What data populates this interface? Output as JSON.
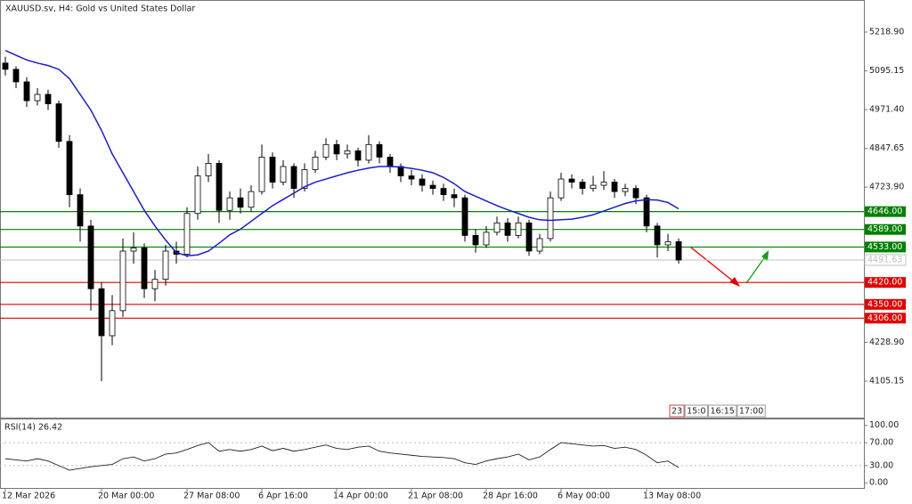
{
  "chart_data": [
    {
      "type": "candlestick",
      "title": "XAUUSD.sv, H4:  Gold vs United States Dollar",
      "categories": [
        "12 Mar 2026",
        null,
        null,
        null,
        null,
        null,
        null,
        null,
        null,
        "20 Mar 00:00",
        null,
        null,
        null,
        null,
        null,
        null,
        null,
        "27 Mar 08:00",
        null,
        null,
        null,
        null,
        null,
        null,
        "6 Apr 16:00",
        null,
        null,
        null,
        null,
        null,
        null,
        "14 Apr 00:00",
        null,
        null,
        null,
        null,
        null,
        null,
        "21 Apr 08:00",
        null,
        null,
        null,
        null,
        null,
        null,
        "28 Apr 16:00",
        null,
        null,
        null,
        null,
        null,
        null,
        "6 May 00:00",
        null,
        null,
        null,
        null,
        null,
        null,
        null,
        "13 May 08:00",
        null,
        null,
        null
      ],
      "open": [
        5120,
        5100,
        5060,
        5000,
        5020,
        4990,
        4870,
        4700,
        4600,
        4400,
        4250,
        4330,
        4520,
        4530,
        4400,
        4430,
        4520,
        4510,
        4640,
        4760,
        4800,
        4650,
        4690,
        4660,
        4710,
        4820,
        4740,
        4790,
        4720,
        4780,
        4820,
        4860,
        4830,
        4840,
        4810,
        4860,
        4820,
        4790,
        4760,
        4750,
        4730,
        4720,
        4700,
        4690,
        4570,
        4540,
        4580,
        4610,
        4570,
        4610,
        4520,
        4560,
        4690,
        4750,
        4740,
        4720,
        4730,
        4740,
        4710,
        4720,
        4690,
        4600,
        4540,
        4550
      ],
      "high": [
        5140,
        5110,
        5075,
        5040,
        5035,
        5000,
        4890,
        4720,
        4620,
        4420,
        4380,
        4560,
        4580,
        4545,
        4460,
        4540,
        4550,
        4660,
        4790,
        4830,
        4810,
        4710,
        4720,
        4730,
        4860,
        4835,
        4810,
        4800,
        4800,
        4840,
        4880,
        4875,
        4860,
        4850,
        4890,
        4870,
        4830,
        4800,
        4780,
        4765,
        4745,
        4735,
        4720,
        4700,
        4590,
        4600,
        4630,
        4625,
        4630,
        4620,
        4575,
        4710,
        4770,
        4765,
        4750,
        4760,
        4775,
        4750,
        4735,
        4730,
        4700,
        4610,
        4575,
        4560
      ],
      "low": [
        5080,
        5040,
        4980,
        4985,
        4970,
        4850,
        4660,
        4550,
        4330,
        4105,
        4220,
        4310,
        4480,
        4370,
        4360,
        4410,
        4480,
        4500,
        4620,
        4740,
        4610,
        4620,
        4640,
        4645,
        4700,
        4720,
        4730,
        4690,
        4710,
        4770,
        4810,
        4810,
        4815,
        4790,
        4800,
        4800,
        4770,
        4740,
        4730,
        4710,
        4700,
        4680,
        4660,
        4550,
        4515,
        4530,
        4570,
        4550,
        4560,
        4505,
        4510,
        4550,
        4680,
        4720,
        4700,
        4710,
        4715,
        4690,
        4695,
        4670,
        4580,
        4500,
        4520,
        4480
      ],
      "close": [
        5100,
        5060,
        5000,
        5020,
        4990,
        4870,
        4700,
        4600,
        4400,
        4250,
        4330,
        4520,
        4530,
        4400,
        4430,
        4520,
        4510,
        4640,
        4760,
        4800,
        4650,
        4690,
        4660,
        4710,
        4820,
        4740,
        4790,
        4720,
        4780,
        4820,
        4860,
        4830,
        4840,
        4810,
        4860,
        4820,
        4790,
        4760,
        4750,
        4730,
        4720,
        4700,
        4690,
        4570,
        4540,
        4580,
        4610,
        4570,
        4610,
        4520,
        4560,
        4690,
        4750,
        4740,
        4720,
        4730,
        4740,
        4710,
        4720,
        4690,
        4600,
        4540,
        4550,
        4491.63
      ],
      "color": "#000000",
      "ma": {
        "color": "#1c1cc8",
        "values": [
          5160,
          5145,
          5130,
          5120,
          5112,
          5100,
          5070,
          5020,
          4970,
          4905,
          4830,
          4770,
          4710,
          4650,
          4600,
          4555,
          4515,
          4505,
          4508,
          4520,
          4545,
          4572,
          4590,
          4615,
          4640,
          4665,
          4685,
          4705,
          4725,
          4740,
          4750,
          4760,
          4770,
          4778,
          4785,
          4790,
          4790,
          4788,
          4784,
          4778,
          4770,
          4755,
          4735,
          4710,
          4695,
          4680,
          4665,
          4652,
          4640,
          4628,
          4620,
          4618,
          4620,
          4622,
          4628,
          4636,
          4648,
          4660,
          4672,
          4680,
          4684,
          4683,
          4675,
          4655
        ]
      },
      "ylim": [
        3991.5,
        5321.2
      ],
      "yticks": [
        {
          "value": 5218.9,
          "label": "5218.90"
        },
        {
          "value": 5095.15,
          "label": "5095.15"
        },
        {
          "value": 4971.4,
          "label": "4971.40"
        },
        {
          "value": 4847.65,
          "label": "4847.65"
        },
        {
          "value": 4723.9,
          "label": "4723.90"
        },
        {
          "value": 4228.9,
          "label": "4228.90"
        },
        {
          "value": 4105.15,
          "label": "4105.15"
        }
      ],
      "levels": [
        {
          "value": 4646,
          "label": "4646.00",
          "color": "#008000"
        },
        {
          "value": 4589,
          "label": "4589.00",
          "color": "#008000"
        },
        {
          "value": 4533,
          "label": "4533.00",
          "color": "#008000"
        },
        {
          "value": 4420,
          "label": "4420.00",
          "color": "#e00000"
        },
        {
          "value": 4350,
          "label": "4350.00",
          "color": "#e00000"
        },
        {
          "value": 4306,
          "label": "4306.00",
          "color": "#e00000"
        }
      ],
      "current_price": {
        "value": 4491.63,
        "label": "4491.63",
        "color": "#c0c0c0"
      },
      "time_markers": [
        "23",
        "15:0",
        "16:15",
        "17:00"
      ]
    },
    {
      "type": "line",
      "title": "RSI(14) 26.42",
      "color": "#222222",
      "values": [
        42,
        40,
        38,
        42,
        38,
        30,
        22,
        25,
        28,
        30,
        32,
        42,
        45,
        38,
        42,
        50,
        52,
        58,
        65,
        70,
        55,
        58,
        55,
        58,
        64,
        56,
        60,
        55,
        58,
        62,
        66,
        60,
        58,
        62,
        64,
        55,
        52,
        50,
        48,
        46,
        45,
        44,
        42,
        35,
        32,
        38,
        42,
        45,
        50,
        40,
        45,
        58,
        70,
        68,
        66,
        64,
        65,
        60,
        62,
        58,
        48,
        35,
        38,
        26.42
      ],
      "ylim": [
        -9,
        112
      ],
      "yticks": [
        {
          "value": 100,
          "label": "100.00"
        },
        {
          "value": 70,
          "label": "70.00"
        },
        {
          "value": 30,
          "label": "30.00"
        },
        {
          "value": 0,
          "label": "0.00"
        }
      ],
      "grid": [
        70,
        30
      ]
    }
  ]
}
